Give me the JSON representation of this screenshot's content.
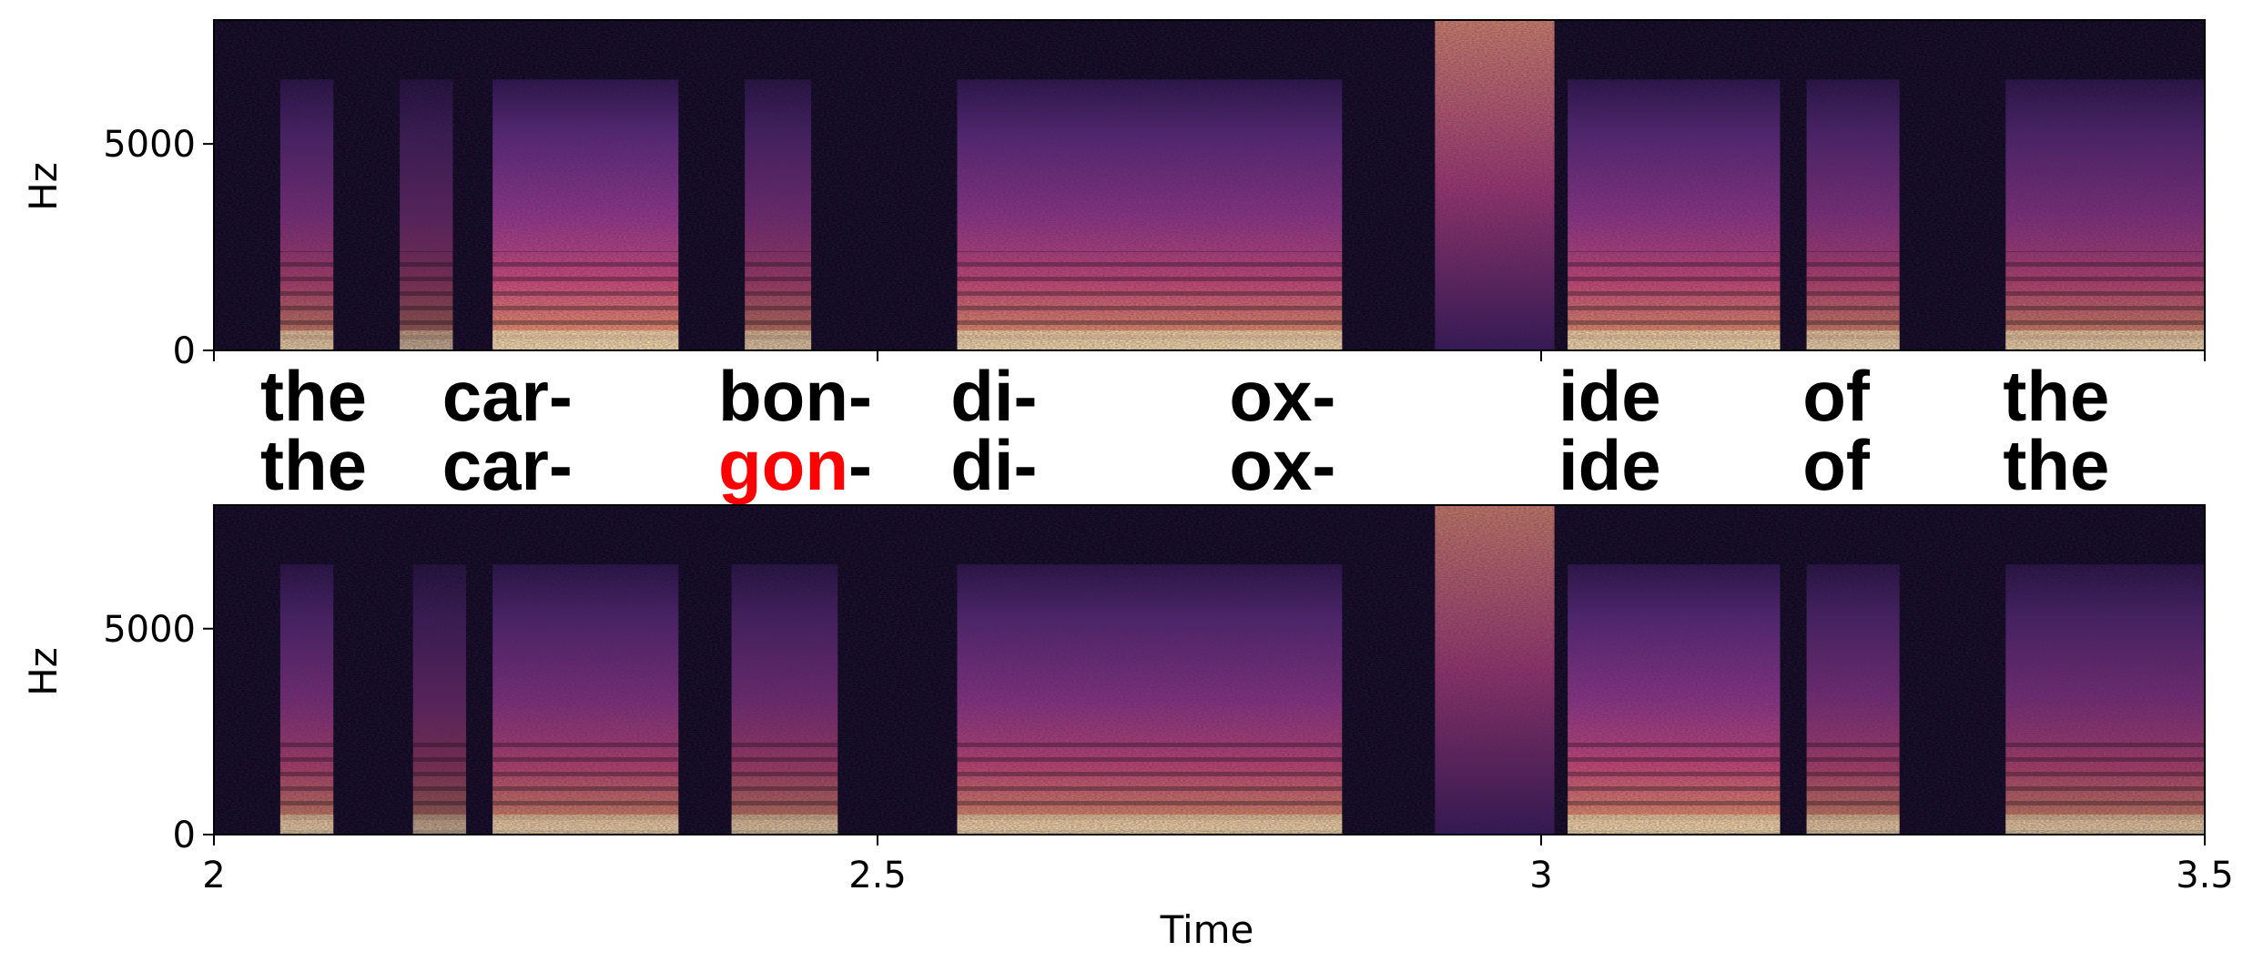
{
  "chart_data": {
    "type": "heatmap",
    "colormap": "magma",
    "xlabel": "Time",
    "x_range": [
      2.0,
      3.5
    ],
    "x_ticks": [
      {
        "value": 2.0,
        "label": "2"
      },
      {
        "value": 2.5,
        "label": "2.5"
      },
      {
        "value": 3.0,
        "label": "3"
      },
      {
        "value": 3.5,
        "label": "3.5"
      }
    ],
    "panels": [
      {
        "id": "top",
        "ylabel": "Hz",
        "ylim": [
          0,
          8000
        ],
        "y_ticks": [
          {
            "value": 0,
            "label": "0"
          },
          {
            "value": 5000,
            "label": "5000"
          }
        ],
        "voiced_segments": [
          {
            "t0": 2.05,
            "t1": 2.09,
            "intensity": 0.75
          },
          {
            "t0": 2.14,
            "t1": 2.18,
            "intensity": 0.55
          },
          {
            "t0": 2.21,
            "t1": 2.35,
            "intensity": 0.95
          },
          {
            "t0": 2.4,
            "t1": 2.45,
            "intensity": 0.7
          },
          {
            "t0": 2.56,
            "t1": 2.85,
            "intensity": 0.9
          },
          {
            "t0": 3.02,
            "t1": 3.18,
            "intensity": 0.9
          },
          {
            "t0": 3.2,
            "t1": 3.27,
            "intensity": 0.8
          },
          {
            "t0": 3.35,
            "t1": 3.5,
            "intensity": 0.8
          }
        ],
        "noise_segments": [
          {
            "t0": 2.92,
            "t1": 3.01,
            "intensity": 0.85
          }
        ]
      },
      {
        "id": "bottom",
        "ylabel": "Hz",
        "ylim": [
          0,
          8000
        ],
        "y_ticks": [
          {
            "value": 0,
            "label": "0"
          },
          {
            "value": 5000,
            "label": "5000"
          }
        ],
        "voiced_segments": [
          {
            "t0": 2.05,
            "t1": 2.09,
            "intensity": 0.75
          },
          {
            "t0": 2.15,
            "t1": 2.19,
            "intensity": 0.55
          },
          {
            "t0": 2.21,
            "t1": 2.35,
            "intensity": 0.8
          },
          {
            "t0": 2.39,
            "t1": 2.47,
            "intensity": 0.7
          },
          {
            "t0": 2.56,
            "t1": 2.85,
            "intensity": 0.85
          },
          {
            "t0": 3.02,
            "t1": 3.18,
            "intensity": 0.9
          },
          {
            "t0": 3.2,
            "t1": 3.27,
            "intensity": 0.75
          },
          {
            "t0": 3.35,
            "t1": 3.5,
            "intensity": 0.75
          }
        ],
        "noise_segments": [
          {
            "t0": 2.92,
            "t1": 3.01,
            "intensity": 0.8
          }
        ]
      }
    ],
    "annotations": {
      "top_row": [
        {
          "t": 2.035,
          "text": "the"
        },
        {
          "t": 2.172,
          "text": "car-"
        },
        {
          "t": 2.38,
          "text": "bon-"
        },
        {
          "t": 2.555,
          "text": "di-"
        },
        {
          "t": 2.765,
          "text": "ox-"
        },
        {
          "t": 3.013,
          "text": "ide"
        },
        {
          "t": 3.197,
          "text": "of"
        },
        {
          "t": 3.348,
          "text": "the"
        }
      ],
      "bottom_row": [
        {
          "t": 2.035,
          "text": "the"
        },
        {
          "t": 2.172,
          "text": "car-"
        },
        {
          "t": 2.38,
          "text": "gon",
          "suffix": "-",
          "highlight_color": "#ff0000"
        },
        {
          "t": 2.555,
          "text": "di-"
        },
        {
          "t": 2.765,
          "text": "ox-"
        },
        {
          "t": 3.013,
          "text": "ide"
        },
        {
          "t": 3.197,
          "text": "of"
        },
        {
          "t": 3.348,
          "text": "the"
        }
      ]
    }
  }
}
